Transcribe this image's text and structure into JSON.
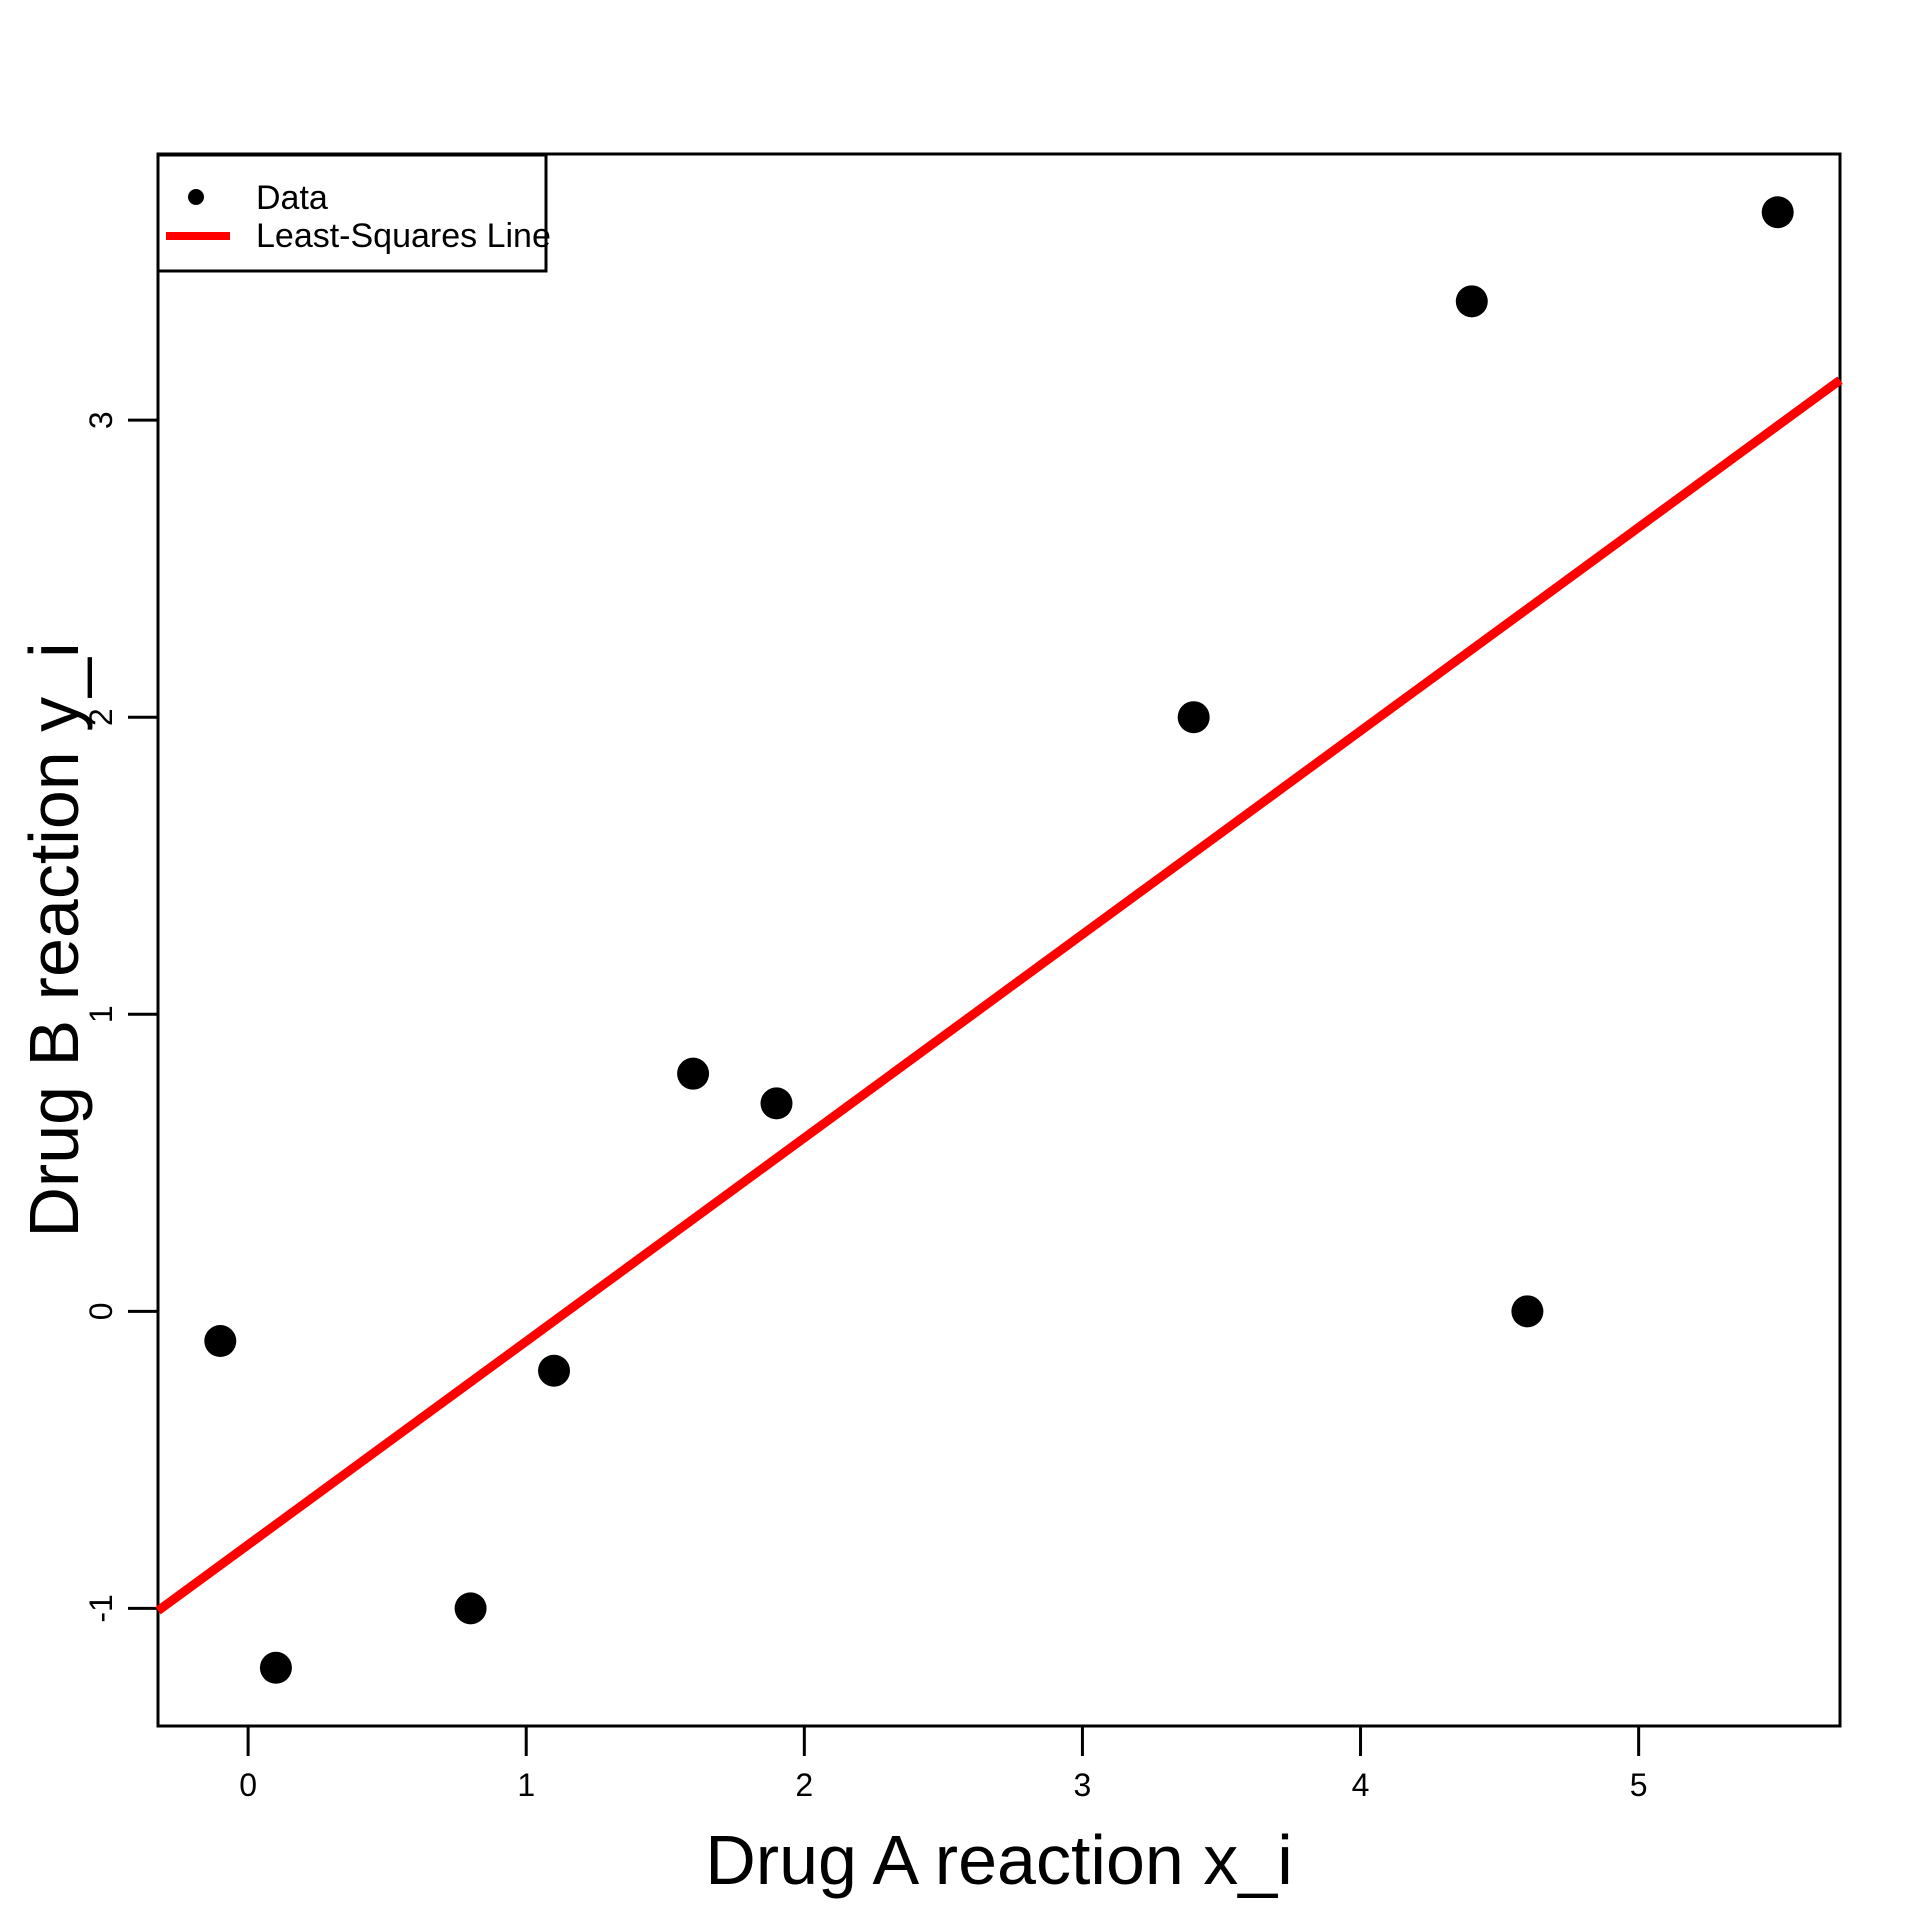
{
  "chart_data": {
    "type": "scatter",
    "title": "",
    "xlabel": "Drug A reaction x_i",
    "ylabel": "Drug B reaction y_i",
    "series_label": "Data",
    "points": [
      [
        -0.1,
        -0.1
      ],
      [
        0.1,
        -1.2
      ],
      [
        0.8,
        -1.0
      ],
      [
        1.1,
        -0.2
      ],
      [
        1.6,
        0.8
      ],
      [
        1.9,
        0.7
      ],
      [
        3.4,
        2.0
      ],
      [
        4.4,
        3.4
      ],
      [
        4.6,
        0.0
      ],
      [
        5.5,
        3.7
      ]
    ],
    "regression_line": {
      "name": "Least-Squares Line",
      "slope": 0.685,
      "intercept": -0.786
    },
    "x_ticks": [
      0,
      1,
      2,
      3,
      4,
      5
    ],
    "y_ticks": [
      -1,
      0,
      1,
      2,
      3
    ],
    "xlim": [
      -0.324,
      5.724
    ],
    "ylim": [
      -1.396,
      3.896
    ],
    "grid": false,
    "marker": "filled-circle",
    "legend_position": "top-left",
    "colors": {
      "points": "#000000",
      "regression_line": "#FF0000",
      "axis": "#000000",
      "background": "#FFFFFF"
    }
  }
}
